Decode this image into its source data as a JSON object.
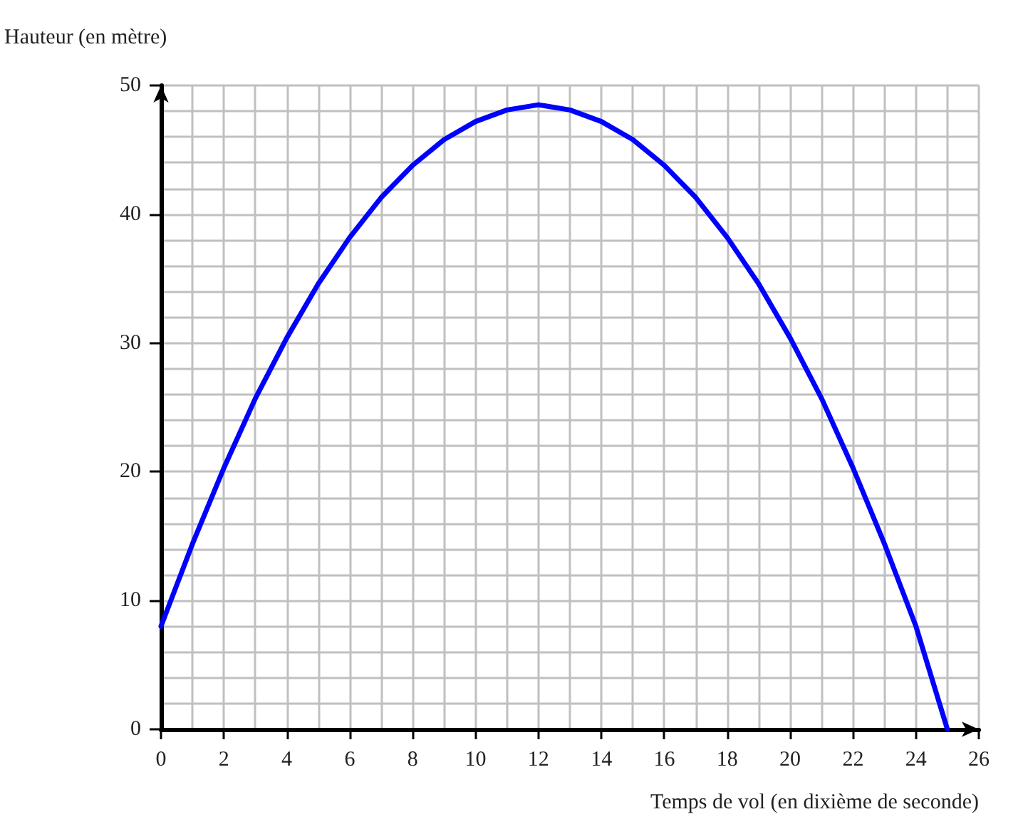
{
  "chart_data": {
    "type": "line",
    "xlabel": "Temps de vol (en dixième de seconde)",
    "ylabel": "Hauteur (en mètre)",
    "x": [
      0,
      1,
      2,
      3,
      4,
      5,
      6,
      7,
      8,
      9,
      10,
      11,
      12,
      13,
      14,
      15,
      16,
      17,
      18,
      19,
      20,
      21,
      22,
      23,
      24,
      25
    ],
    "series": [
      {
        "color": "#0000ff",
        "values": [
          8,
          14.4,
          20.3,
          25.7,
          30.4,
          34.6,
          38.2,
          41.3,
          43.8,
          45.8,
          47.2,
          48.1,
          48.5,
          48.1,
          47.2,
          45.8,
          43.8,
          41.3,
          38.2,
          34.6,
          30.4,
          25.7,
          20.3,
          14.4,
          8,
          0
        ]
      }
    ],
    "xlim": [
      0,
      26
    ],
    "xticks": [
      0,
      2,
      4,
      6,
      8,
      10,
      12,
      14,
      16,
      18,
      20,
      22,
      24,
      26
    ],
    "ylim": [
      0,
      50
    ],
    "yticks": [
      0,
      10,
      20,
      30,
      40,
      50
    ],
    "grid": true,
    "line_style": "solid"
  }
}
